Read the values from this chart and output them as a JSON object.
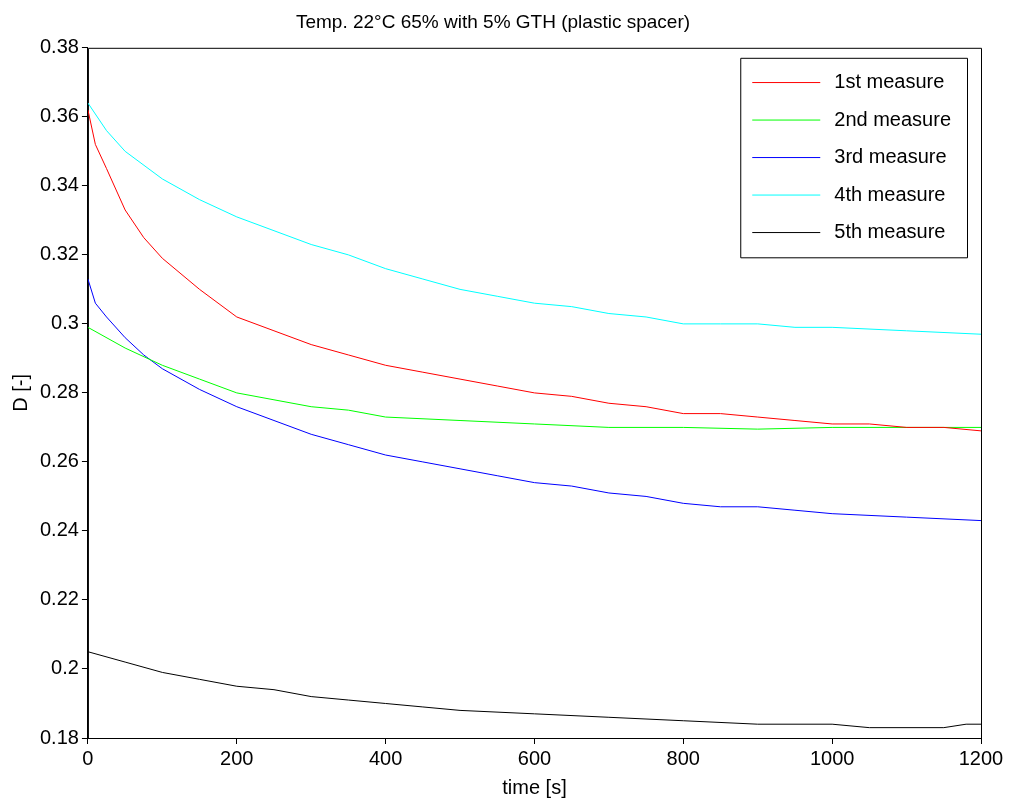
{
  "chart_data": {
    "type": "line",
    "title": "Temp. 22°C 65% with 5% GTH (plastic spacer)",
    "xlabel": "time [s]",
    "ylabel": "D [-]",
    "xlim": [
      0,
      1200
    ],
    "xticks": [
      0,
      200,
      400,
      600,
      800,
      1000,
      1200
    ],
    "ylim": [
      0.18,
      0.38
    ],
    "yticks": [
      0.18,
      0.2,
      0.22,
      0.24,
      0.26,
      0.28,
      0.3,
      0.32,
      0.34,
      0.36,
      0.38
    ],
    "grid": false,
    "legend": "top right",
    "marker": "none",
    "line_style": "solid",
    "series": [
      {
        "name": "1st measure",
        "color": "#ff0000",
        "x": [
          0,
          10,
          25,
          50,
          75,
          100,
          150,
          200,
          250,
          300,
          350,
          400,
          450,
          500,
          550,
          600,
          650,
          700,
          750,
          800,
          850,
          900,
          950,
          1000,
          1050,
          1100,
          1150,
          1200
        ],
        "values": [
          0.362,
          0.352,
          0.345,
          0.333,
          0.325,
          0.319,
          0.31,
          0.302,
          0.298,
          0.294,
          0.291,
          0.288,
          0.286,
          0.284,
          0.282,
          0.28,
          0.279,
          0.277,
          0.276,
          0.274,
          0.274,
          0.273,
          0.272,
          0.271,
          0.271,
          0.27,
          0.27,
          0.269
        ]
      },
      {
        "name": "2nd measure",
        "color": "#00ff00",
        "x": [
          0,
          50,
          100,
          150,
          200,
          250,
          300,
          350,
          400,
          500,
          600,
          700,
          800,
          900,
          1000,
          1200
        ],
        "values": [
          0.299,
          0.293,
          0.288,
          0.284,
          0.28,
          0.278,
          0.276,
          0.275,
          0.273,
          0.272,
          0.271,
          0.27,
          0.27,
          0.2695,
          0.27,
          0.27
        ]
      },
      {
        "name": "3rd measure",
        "color": "#0000ff",
        "x": [
          0,
          10,
          25,
          50,
          75,
          100,
          150,
          200,
          250,
          300,
          350,
          400,
          450,
          500,
          550,
          600,
          650,
          700,
          750,
          800,
          850,
          900,
          950,
          1000,
          1100,
          1200
        ],
        "values": [
          0.313,
          0.306,
          0.302,
          0.296,
          0.291,
          0.287,
          0.281,
          0.276,
          0.272,
          0.268,
          0.265,
          0.262,
          0.26,
          0.258,
          0.256,
          0.254,
          0.253,
          0.251,
          0.25,
          0.248,
          0.247,
          0.247,
          0.246,
          0.245,
          0.244,
          0.243
        ]
      },
      {
        "name": "4th measure",
        "color": "#00ffff",
        "x": [
          0,
          25,
          50,
          100,
          150,
          200,
          250,
          300,
          350,
          400,
          450,
          500,
          550,
          600,
          650,
          700,
          750,
          800,
          850,
          900,
          950,
          1000,
          1100,
          1200
        ],
        "values": [
          0.364,
          0.356,
          0.35,
          0.342,
          0.336,
          0.331,
          0.327,
          0.323,
          0.32,
          0.316,
          0.313,
          0.31,
          0.308,
          0.306,
          0.305,
          0.303,
          0.302,
          0.3,
          0.3,
          0.3,
          0.299,
          0.299,
          0.298,
          0.297
        ]
      },
      {
        "name": "5th measure",
        "color": "#000000",
        "x": [
          0,
          50,
          100,
          150,
          200,
          250,
          300,
          350,
          400,
          450,
          500,
          600,
          700,
          800,
          900,
          1000,
          1050,
          1150,
          1180,
          1200
        ],
        "values": [
          0.205,
          0.202,
          0.199,
          0.197,
          0.195,
          0.194,
          0.192,
          0.191,
          0.19,
          0.189,
          0.188,
          0.187,
          0.186,
          0.185,
          0.184,
          0.184,
          0.183,
          0.183,
          0.184,
          0.184
        ]
      }
    ]
  }
}
